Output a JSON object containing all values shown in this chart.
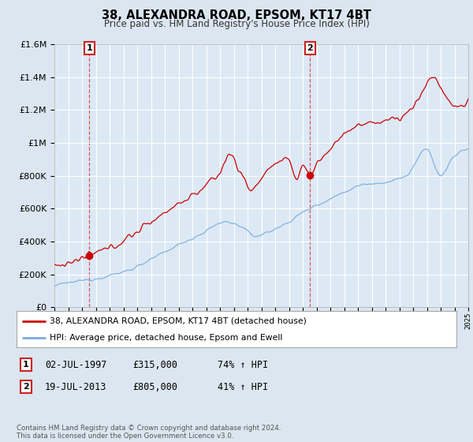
{
  "title": "38, ALEXANDRA ROAD, EPSOM, KT17 4BT",
  "subtitle": "Price paid vs. HM Land Registry's House Price Index (HPI)",
  "legend_line1": "38, ALEXANDRA ROAD, EPSOM, KT17 4BT (detached house)",
  "legend_line2": "HPI: Average price, detached house, Epsom and Ewell",
  "sale1_label": "1",
  "sale1_date": "02-JUL-1997",
  "sale1_price": "£315,000",
  "sale1_hpi": "74% ↑ HPI",
  "sale1_year": 1997.54,
  "sale1_value": 315000,
  "sale2_label": "2",
  "sale2_date": "19-JUL-2013",
  "sale2_price": "£805,000",
  "sale2_hpi": "41% ↑ HPI",
  "sale2_year": 2013.54,
  "sale2_value": 805000,
  "footer": "Contains HM Land Registry data © Crown copyright and database right 2024.\nThis data is licensed under the Open Government Licence v3.0.",
  "line_color_red": "#cc0000",
  "line_color_blue": "#7aabdc",
  "background_color": "#dce6f0",
  "plot_bg_color": "#dce9f5",
  "grid_color": "#ffffff",
  "ylim": [
    0,
    1600000
  ],
  "xlim_start": 1995,
  "xlim_end": 2025
}
